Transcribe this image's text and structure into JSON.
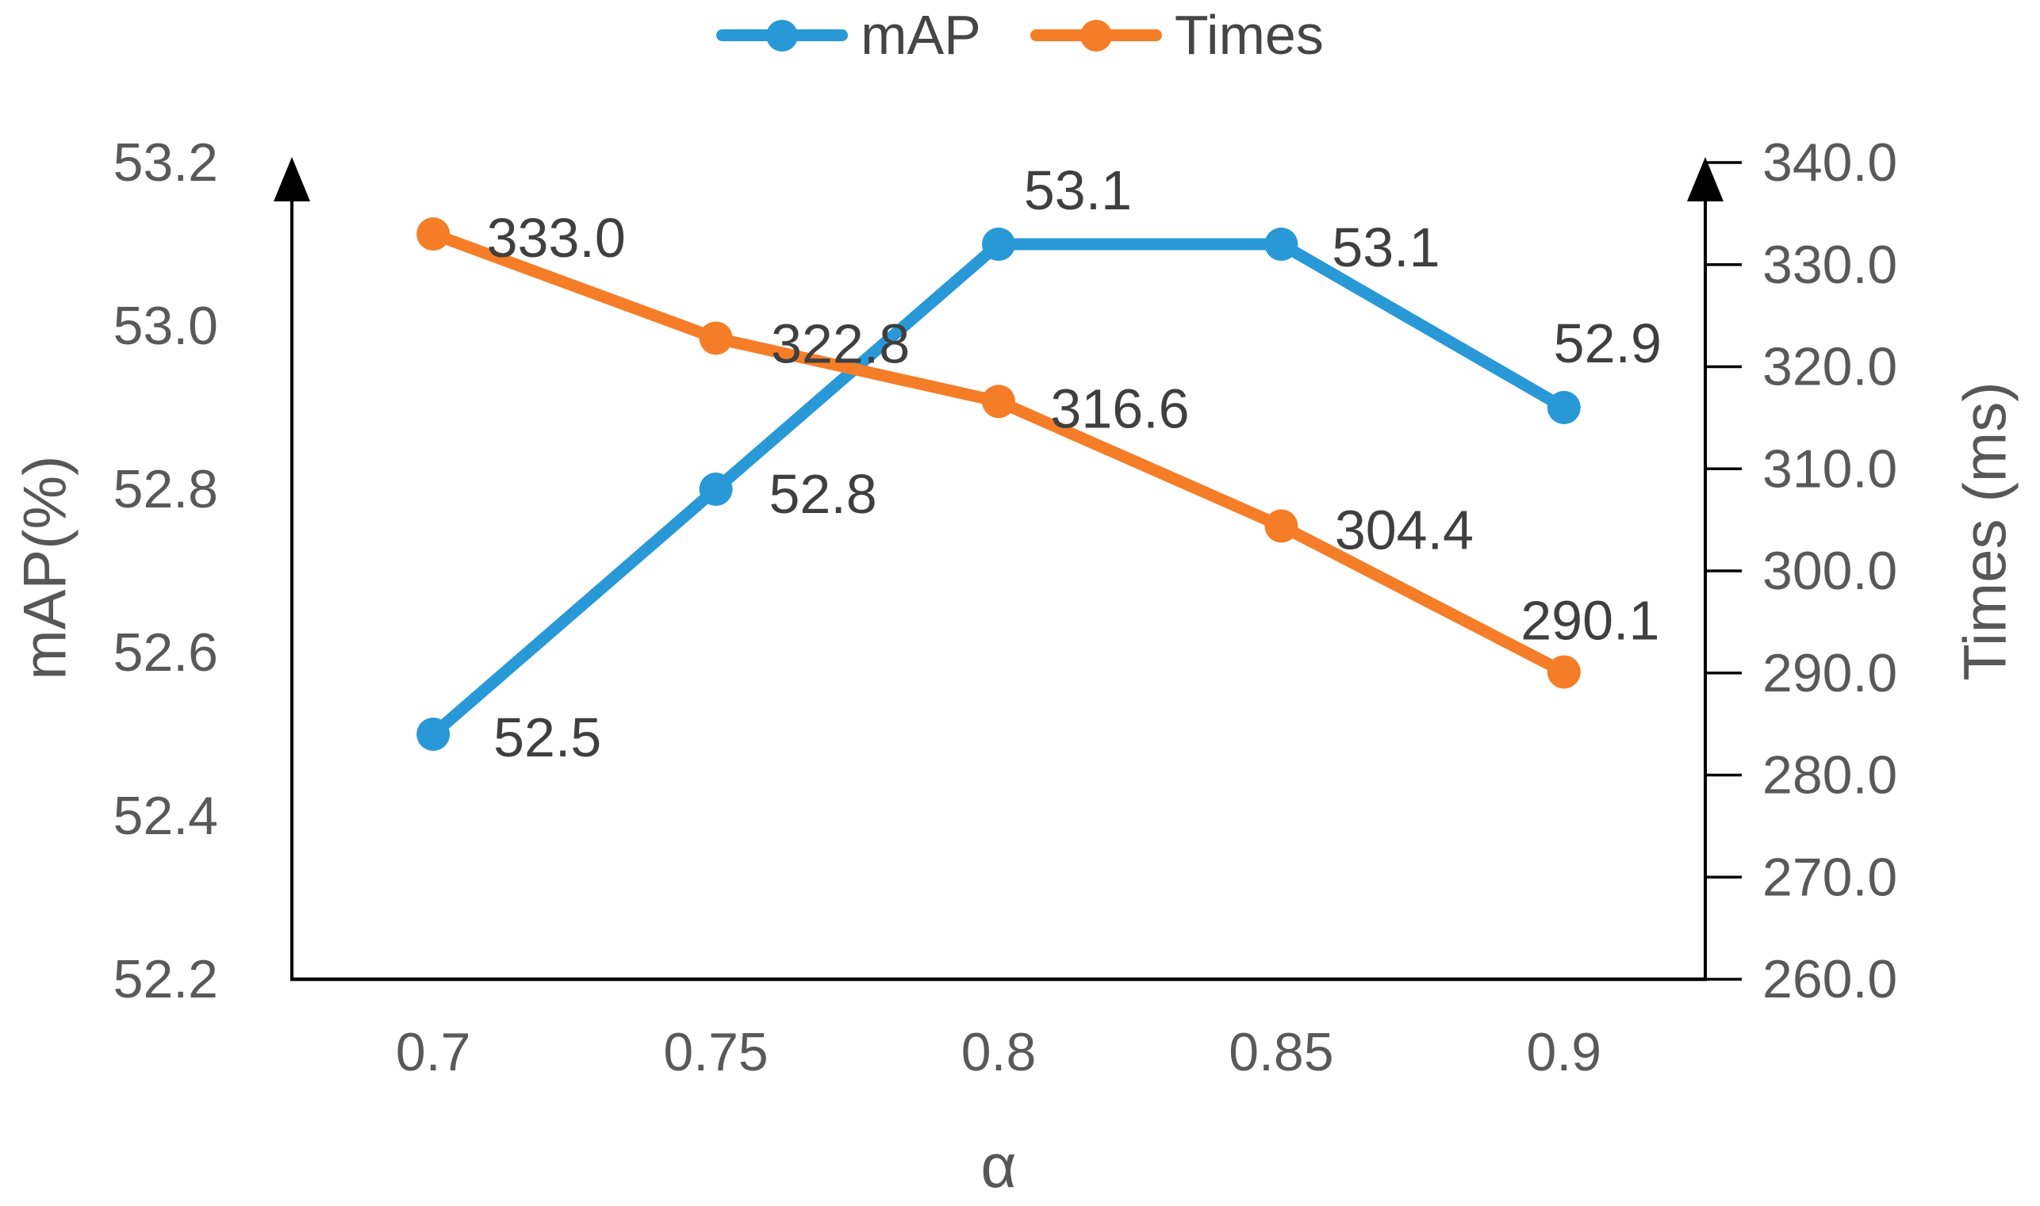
{
  "legend": {
    "items": [
      {
        "label": "mAP",
        "color": "#2899D6"
      },
      {
        "label": "Times",
        "color": "#F57D28"
      }
    ]
  },
  "chart_data": {
    "type": "line",
    "x_label": "α",
    "categories": [
      "0.7",
      "0.75",
      "0.8",
      "0.85",
      "0.9"
    ],
    "left_axis": {
      "title": "mAP(%)",
      "range": [
        52.2,
        53.2
      ],
      "ticks": [
        "53.2",
        "53.0",
        "52.8",
        "52.6",
        "52.4",
        "52.2"
      ]
    },
    "right_axis": {
      "title": "Times (ms)",
      "range": [
        260.0,
        340.0
      ],
      "ticks": [
        "340.0",
        "330.0",
        "320.0",
        "310.0",
        "300.0",
        "290.0",
        "280.0",
        "270.0",
        "260.0"
      ]
    },
    "series": [
      {
        "name": "mAP",
        "axis": "left",
        "color": "#2899D6",
        "values": [
          52.5,
          52.8,
          53.1,
          53.1,
          52.9
        ],
        "labels": [
          "52.5",
          "52.8",
          "53.1",
          "53.1",
          "52.9"
        ],
        "label_offsets": [
          [
            144,
            4
          ],
          [
            135,
            6
          ],
          [
            100,
            -68
          ],
          [
            132,
            4
          ],
          [
            55,
            -81
          ]
        ]
      },
      {
        "name": "Times",
        "axis": "right",
        "color": "#F57D28",
        "values": [
          333.0,
          322.8,
          316.6,
          304.4,
          290.1
        ],
        "labels": [
          "333.0",
          "322.8",
          "316.6",
          "304.4",
          "290.1"
        ],
        "label_offsets": [
          [
            155,
            5
          ],
          [
            157,
            7
          ],
          [
            153,
            9
          ],
          [
            155,
            5
          ],
          [
            33,
            -65
          ]
        ]
      }
    ],
    "legend_position": "top",
    "grid": false,
    "axis_arrowheads": true
  },
  "colors": {
    "axis_line": "#000000",
    "tick_text": "#595959",
    "data_label_text": "#3F3F3F",
    "axis_title_text": "#575757"
  }
}
